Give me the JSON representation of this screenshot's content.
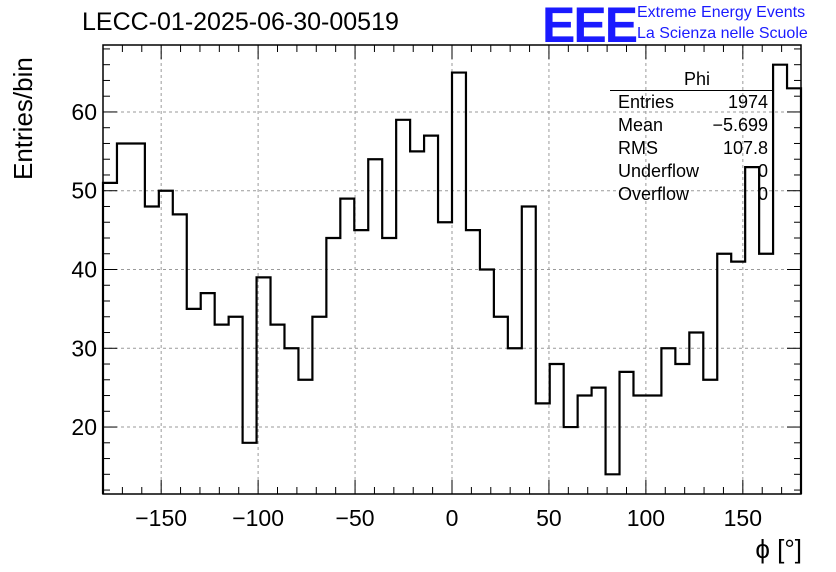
{
  "header": {
    "run_title": "LECC-01-2025-06-30-00519",
    "logo_mark": "EEE",
    "logo_line1": "Extreme Energy Events",
    "logo_line2": "La Scienza nelle Scuole"
  },
  "stats_box": {
    "name": "Phi",
    "rows": [
      {
        "label": "Entries",
        "value": "1974"
      },
      {
        "label": "Mean",
        "value": "−5.699"
      },
      {
        "label": "RMS",
        "value": "107.8"
      },
      {
        "label": "Underflow",
        "value": "0"
      },
      {
        "label": "Overflow",
        "value": "0"
      }
    ]
  },
  "chart_data": {
    "type": "bar",
    "style": "step-histogram",
    "title": "LECC-01-2025-06-30-00519",
    "xlabel": "ϕ [°]",
    "ylabel": "Entries/bin",
    "xlim": [
      -180,
      180
    ],
    "ylim": [
      11.5,
      68.5
    ],
    "bin_width": 7.2,
    "bin_start": -180,
    "values": [
      51,
      56,
      56,
      48,
      50,
      47,
      35,
      37,
      33,
      34,
      18,
      39,
      33,
      30,
      26,
      34,
      44,
      49,
      45,
      54,
      44,
      59,
      55,
      57,
      46,
      65,
      45,
      40,
      34,
      30,
      48,
      23,
      28,
      20,
      24,
      25,
      14,
      27,
      24,
      24,
      30,
      28,
      32,
      26,
      42,
      41,
      53,
      42,
      66,
      63
    ],
    "x_ticks": [
      -150,
      -100,
      -50,
      0,
      50,
      100,
      150
    ],
    "x_tick_labels": [
      "−150",
      "−100",
      "−50",
      "0",
      "50",
      "100",
      "150"
    ],
    "y_ticks": [
      20,
      30,
      40,
      50,
      60
    ],
    "y_tick_labels": [
      "20",
      "30",
      "40",
      "50",
      "60"
    ],
    "grid": true,
    "colors": {
      "line": "#000000",
      "grid": "#9a9a9a",
      "logo": "#1a1aff"
    }
  }
}
